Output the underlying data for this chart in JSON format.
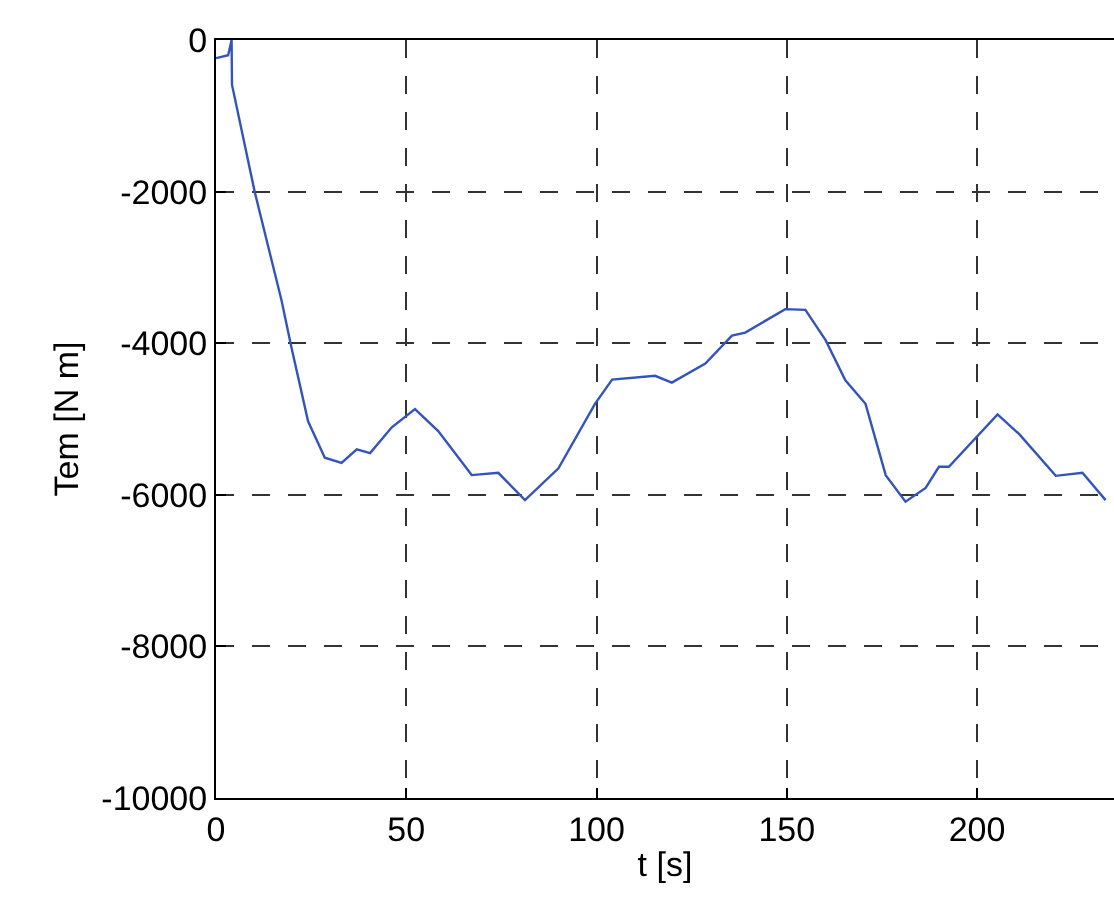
{
  "chart_data": {
    "type": "line",
    "xlabel": "t [s]",
    "ylabel": "Tem [N m]",
    "x": [
      0,
      3.2,
      4.1,
      4.2,
      10.2,
      13.7,
      17.2,
      19.8,
      24.2,
      28.6,
      33.0,
      37.0,
      40.5,
      46.2,
      52.3,
      58.4,
      67.2,
      74.2,
      81.2,
      90.0,
      99.6,
      104.1,
      115.4,
      119.8,
      128.6,
      135.6,
      139.1,
      149.6,
      154.9,
      160.2,
      165.4,
      170.7,
      176.0,
      181.2,
      186.5,
      190.0,
      192.6,
      205.4,
      211.1,
      220.7,
      227.7,
      233.8
    ],
    "series": [
      {
        "color": "#3355bb",
        "values": [
          -240,
          -200,
          0,
          -590,
          -2010,
          -2720,
          -3430,
          -4050,
          -5030,
          -5510,
          -5580,
          -5400,
          -5450,
          -5110,
          -4870,
          -5160,
          -5740,
          -5710,
          -6070,
          -5650,
          -4800,
          -4480,
          -4430,
          -4520,
          -4270,
          -3900,
          -3860,
          -3550,
          -3560,
          -3960,
          -4490,
          -4800,
          -5740,
          -6090,
          -5910,
          -5630,
          -5630,
          -4940,
          -5200,
          -5750,
          -5710,
          -6070
        ]
      }
    ],
    "xlim": [
      0,
      236
    ],
    "xticks": [
      0,
      50,
      100,
      150,
      200
    ],
    "ylim": [
      -10000,
      0
    ],
    "yticks": [
      -10000,
      -8000,
      -6000,
      -4000,
      -2000,
      0
    ],
    "grid": true,
    "line_style": "solid",
    "marker": "none"
  }
}
